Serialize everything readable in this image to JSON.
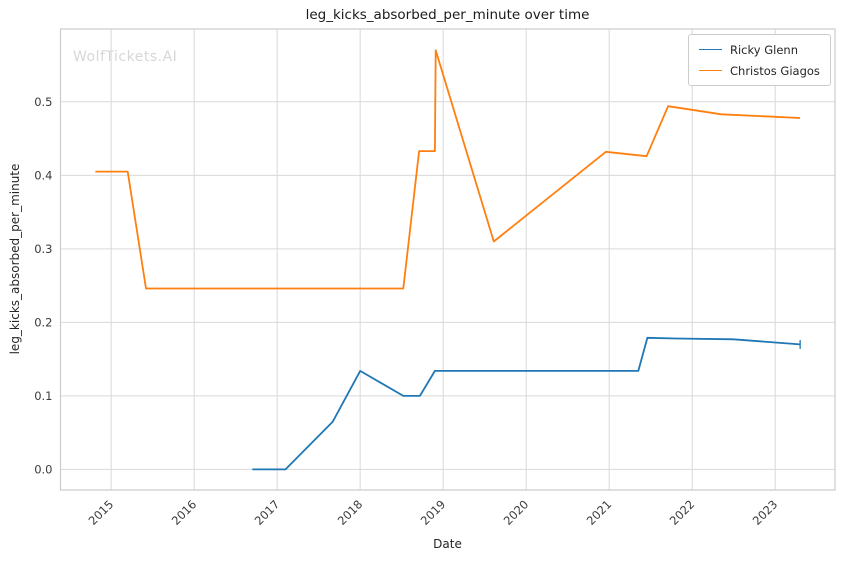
{
  "branding": {
    "watermark": "WolfTickets.AI"
  },
  "colors": {
    "series_blue": "#1f77b4",
    "series_orange": "#ff7f0e",
    "grid": "#d9d9d9",
    "spine": "#cccccc",
    "tick_text": "#3b3b3b",
    "text": "#262626",
    "watermark": "#d7d7d7",
    "background": "#ffffff"
  },
  "chart_data": {
    "type": "line",
    "title": "leg_kicks_absorbed_per_minute over time",
    "xlabel": "Date",
    "ylabel": "leg_kicks_absorbed_per_minute",
    "grid": true,
    "legend_position": "upper right",
    "xlim": [
      2014.39,
      2023.72
    ],
    "ylim": [
      -0.028,
      0.599
    ],
    "x_ticks": {
      "values": [
        2015,
        2016,
        2017,
        2018,
        2019,
        2020,
        2021,
        2022,
        2023
      ],
      "labels": [
        "2015",
        "2016",
        "2017",
        "2018",
        "2019",
        "2020",
        "2021",
        "2022",
        "2023"
      ]
    },
    "y_ticks": {
      "values": [
        0.0,
        0.1,
        0.2,
        0.3,
        0.4,
        0.5
      ],
      "labels": [
        "0.0",
        "0.1",
        "0.2",
        "0.3",
        "0.4",
        "0.5"
      ]
    },
    "series": [
      {
        "name": "Ricky Glenn",
        "color": "#1f77b4",
        "end_marker": "vline",
        "points": [
          [
            2016.7,
            0.0
          ],
          [
            2017.1,
            0.0
          ],
          [
            2017.67,
            0.065
          ],
          [
            2018.0,
            0.134
          ],
          [
            2018.52,
            0.1
          ],
          [
            2018.72,
            0.1
          ],
          [
            2018.9,
            0.134
          ],
          [
            2021.35,
            0.134
          ],
          [
            2021.46,
            0.179
          ],
          [
            2021.8,
            0.178
          ],
          [
            2022.5,
            0.177
          ],
          [
            2023.3,
            0.17
          ]
        ]
      },
      {
        "name": "Christos Giagos",
        "color": "#ff7f0e",
        "end_marker": "none",
        "points": [
          [
            2014.81,
            0.405
          ],
          [
            2015.2,
            0.405
          ],
          [
            2015.42,
            0.246
          ],
          [
            2018.52,
            0.246
          ],
          [
            2018.71,
            0.433
          ],
          [
            2018.9,
            0.433
          ],
          [
            2018.91,
            0.57
          ],
          [
            2019.61,
            0.31
          ],
          [
            2020.96,
            0.432
          ],
          [
            2021.45,
            0.426
          ],
          [
            2021.71,
            0.494
          ],
          [
            2022.35,
            0.483
          ],
          [
            2023.3,
            0.478
          ]
        ]
      }
    ]
  }
}
